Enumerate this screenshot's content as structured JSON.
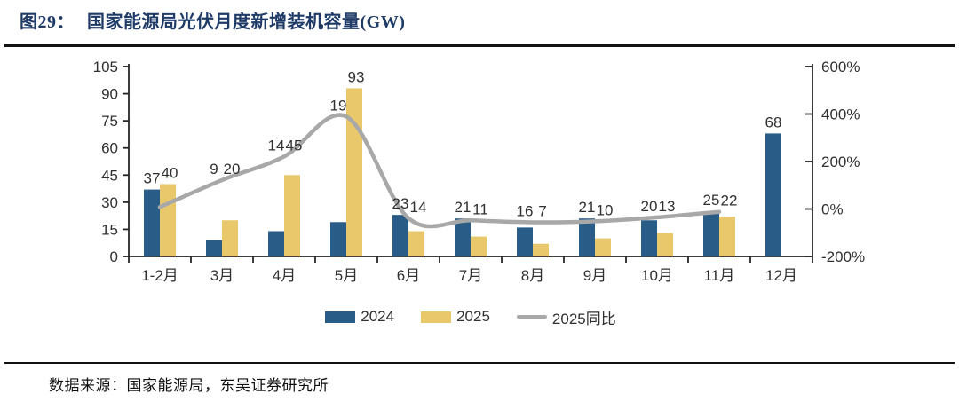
{
  "figure": {
    "title_prefix": "图29：",
    "title": "国家能源局光伏月度新增装机容量(GW)",
    "source": "数据来源：国家能源局，东吴证券研究所"
  },
  "chart_data": {
    "type": "bar",
    "subtype": "grouped-bar-with-line-combo",
    "title": "国家能源局光伏月度新增装机容量(GW)",
    "categories": [
      "1-2月",
      "3月",
      "4月",
      "5月",
      "6月",
      "7月",
      "8月",
      "9月",
      "10月",
      "11月",
      "12月"
    ],
    "series": [
      {
        "name": "2024",
        "type": "bar",
        "axis": "left",
        "color": "#2A5C88",
        "values": [
          37,
          9,
          14,
          19,
          23,
          21,
          16,
          21,
          20,
          25,
          68
        ]
      },
      {
        "name": "2025",
        "type": "bar",
        "axis": "left",
        "color": "#E9C86C",
        "values": [
          40,
          20,
          45,
          93,
          14,
          11,
          7,
          10,
          13,
          22,
          null
        ]
      },
      {
        "name": "2025同比",
        "type": "line",
        "axis": "right",
        "color": "#A8A8A8",
        "values": [
          8,
          122,
          221,
          389,
          -39,
          -48,
          -56,
          -52,
          -35,
          -12,
          null
        ]
      }
    ],
    "left_axis": {
      "min": 0,
      "max": 105,
      "ticks": [
        0,
        15,
        30,
        45,
        60,
        75,
        90,
        105
      ]
    },
    "right_axis": {
      "min": -200,
      "max": 600,
      "ticks": [
        {
          "v": -200,
          "label": "-200%"
        },
        {
          "v": 0,
          "label": "0%"
        },
        {
          "v": 200,
          "label": "200%"
        },
        {
          "v": 400,
          "label": "400%"
        },
        {
          "v": 600,
          "label": "600%"
        }
      ]
    },
    "grid": false,
    "legend_position": "bottom",
    "legend": [
      "2024",
      "2025",
      "2025同比"
    ],
    "colors": {
      "bar_2024": "#2A5C88",
      "bar_2025": "#E9C86C",
      "yoy_line": "#A8A8A8",
      "axis": "#262626",
      "labels": "#303030",
      "title": "#1E3A66"
    }
  }
}
